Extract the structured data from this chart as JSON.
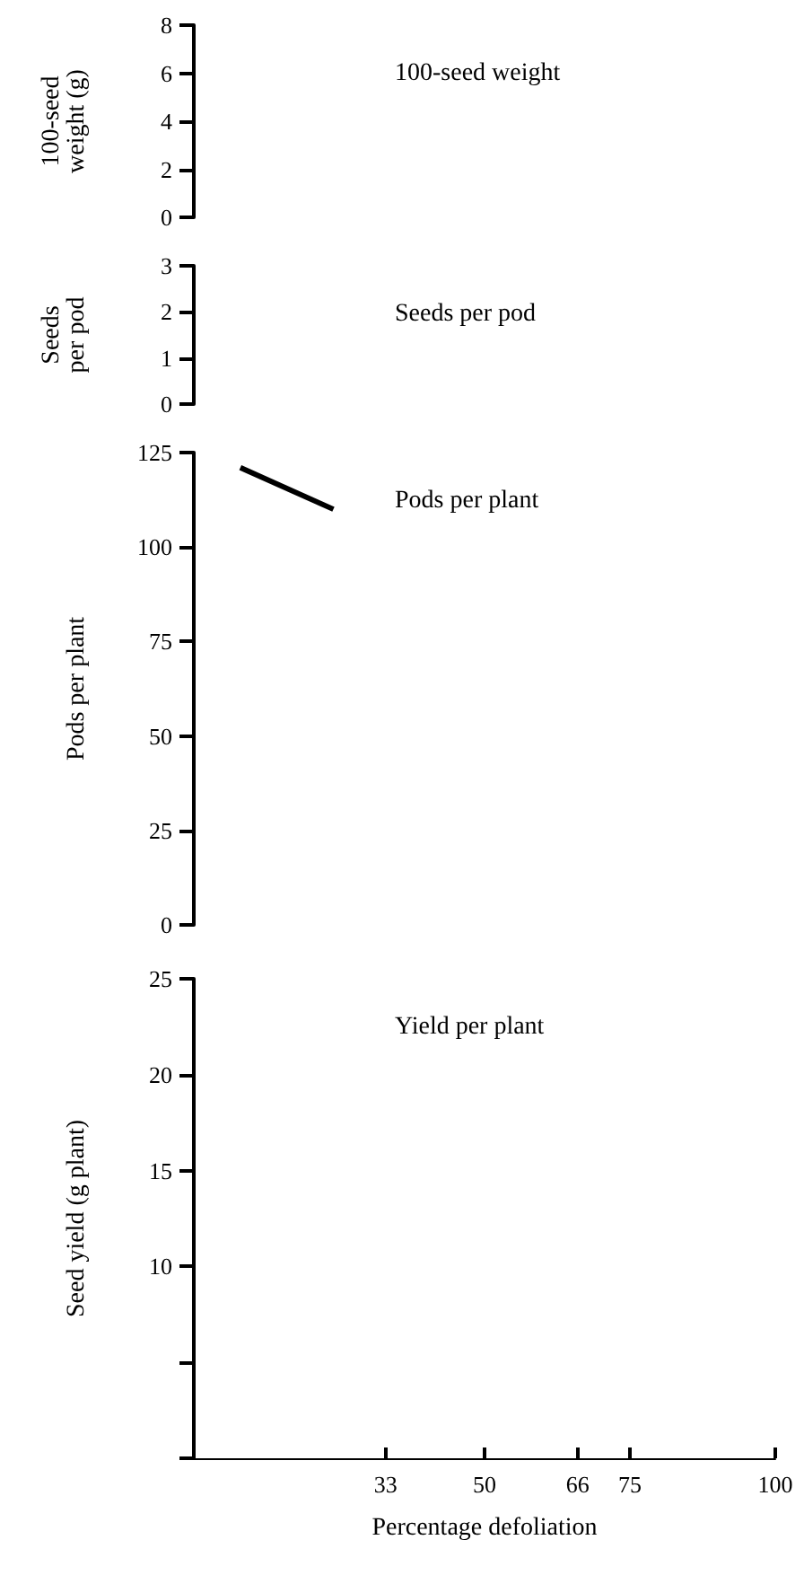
{
  "chart_data": [
    {
      "type": "line",
      "ylabel": "100-seed\nweight (g)",
      "annotations": [
        "100-seed weight"
      ],
      "xlim": [
        0,
        100
      ],
      "ylim": [
        0,
        8
      ],
      "yticks": [
        0,
        2,
        4,
        6,
        8
      ],
      "tick_labels": "y",
      "grid": false
    },
    {
      "type": "line",
      "ylabel": "Seeds\nper pod",
      "annotations": [
        "Seeds per pod"
      ],
      "xlim": [
        0,
        100
      ],
      "ylim": [
        0,
        3
      ],
      "yticks": [
        0,
        1,
        2,
        3
      ],
      "tick_labels": "y",
      "grid": false
    },
    {
      "type": "line",
      "ylabel": "Pods per plant",
      "annotations": [
        "Pods per plant"
      ],
      "xlim": [
        0,
        100
      ],
      "ylim": [
        0,
        125
      ],
      "yticks": [
        0,
        25,
        50,
        75,
        100,
        125
      ],
      "tick_labels": "y",
      "grid": false,
      "marker": "none",
      "line_style": "solid",
      "series": [
        {
          "color": "#000000",
          "x": [
            8,
            24
          ],
          "values": [
            121,
            110
          ]
        }
      ]
    },
    {
      "type": "line",
      "ylabel": "Seed yield (g plant)",
      "xlabel": "Percentage defoliation",
      "annotations": [
        "Yield per plant"
      ],
      "xlim": [
        0,
        100
      ],
      "xticks": [
        33,
        50,
        66,
        75,
        100
      ],
      "ylim": [
        0,
        25
      ],
      "yticks": [
        {
          "value": 0,
          "label": null
        },
        {
          "value": 5,
          "label": null
        },
        10,
        15,
        20,
        25
      ],
      "grid": false
    }
  ]
}
